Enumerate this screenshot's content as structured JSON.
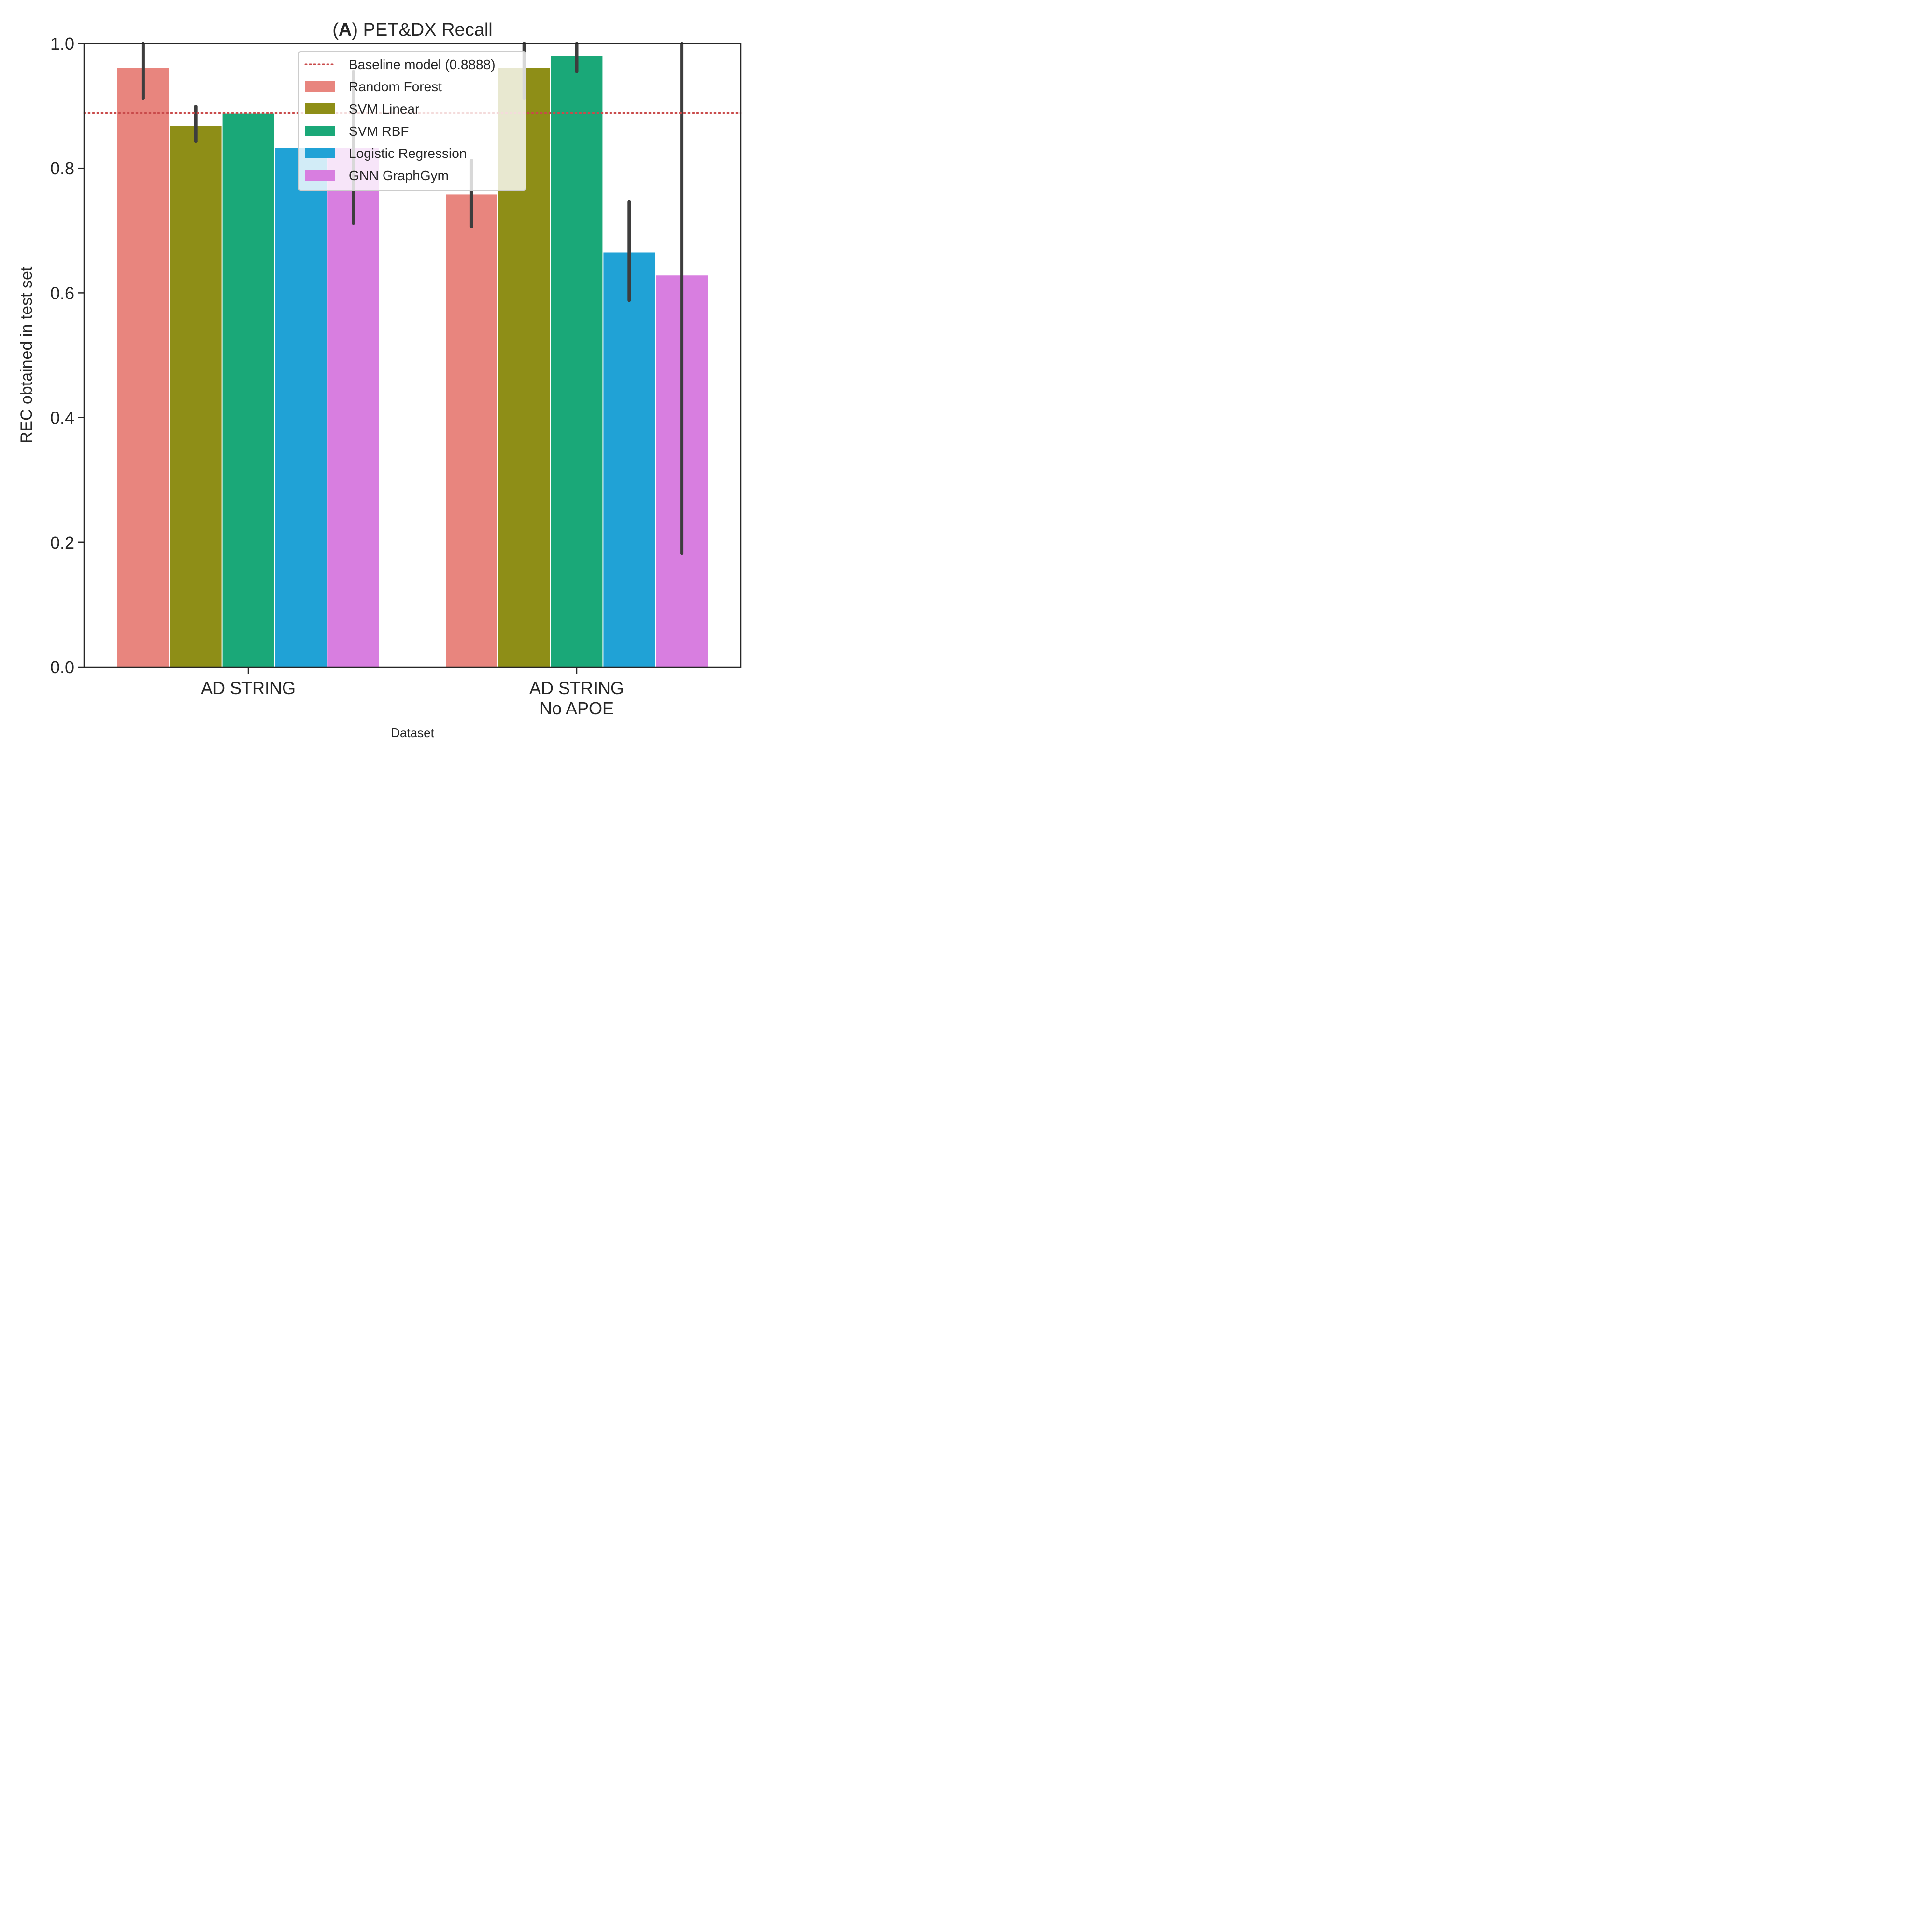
{
  "chart_data": {
    "type": "bar",
    "title_prefix": "A",
    "title": "PET&DX Recall",
    "xlabel": "Dataset",
    "ylabel": "REC obtained in test set",
    "ylim": [
      0,
      1.0
    ],
    "yticks": [
      "0.0",
      "0.2",
      "0.4",
      "0.6",
      "0.8",
      "1.0"
    ],
    "categories": [
      [
        "AD STRING"
      ],
      [
        "AD STRING",
        "No APOE"
      ]
    ],
    "baseline": {
      "label": "Baseline model (0.8888)",
      "value": 0.8888,
      "color": "#c94a4a"
    },
    "series": [
      {
        "name": "Random Forest",
        "color": "#e8857e",
        "values": [
          0.961,
          0.758
        ],
        "err": [
          [
            0.912,
            1.0
          ],
          [
            0.706,
            0.812
          ]
        ]
      },
      {
        "name": "SVM Linear",
        "color": "#8e8e17",
        "values": [
          0.868,
          0.961
        ],
        "err": [
          [
            0.843,
            0.899
          ],
          [
            0.912,
            1.0
          ]
        ]
      },
      {
        "name": "SVM RBF",
        "color": "#1aa878",
        "values": [
          0.888,
          0.98
        ],
        "err": [
          null,
          [
            0.955,
            1.0
          ]
        ]
      },
      {
        "name": "Logistic Regression",
        "color": "#20a2d6",
        "values": [
          0.832,
          0.665
        ],
        "err": [
          null,
          [
            0.588,
            0.746
          ]
        ]
      },
      {
        "name": "GNN GraphGym",
        "color": "#d87ee0",
        "values": [
          0.832,
          0.628
        ],
        "err": [
          [
            0.712,
            0.955
          ],
          [
            0.182,
            1.0
          ]
        ]
      }
    ],
    "legend_position": "top-center",
    "grid": false
  }
}
